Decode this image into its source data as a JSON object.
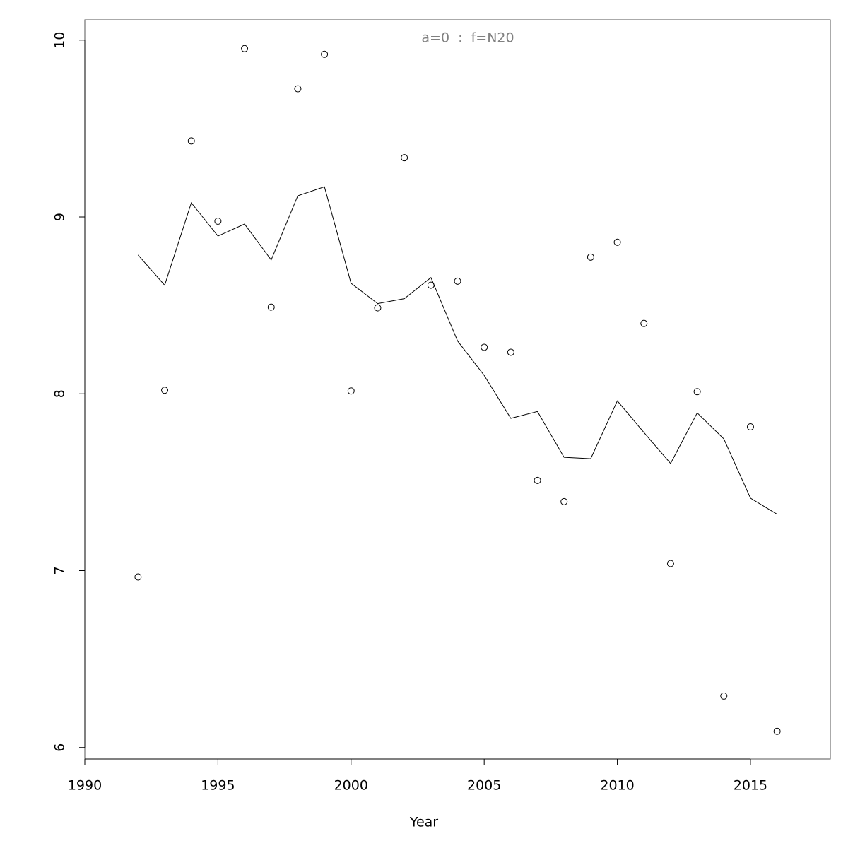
{
  "chart_data": {
    "type": "scatter",
    "title": "a=0  :  f=N20",
    "x_label": "Year",
    "x": [
      1992,
      1993,
      1994,
      1995,
      1996,
      1997,
      1998,
      1999,
      2000,
      2001,
      2002,
      2003,
      2004,
      2005,
      2006,
      2007,
      2008,
      2009,
      2010,
      2011,
      2012,
      2013,
      2014,
      2015,
      2016
    ],
    "series": [
      {
        "style": "points",
        "color": "#000000",
        "values": [
          6.964,
          8.02,
          9.43,
          8.976,
          9.952,
          8.49,
          9.725,
          9.92,
          8.016,
          8.486,
          9.335,
          8.614,
          8.637,
          8.263,
          8.235,
          7.51,
          7.39,
          8.773,
          8.857,
          8.398,
          7.04,
          8.012,
          6.291,
          7.813,
          6.092
        ]
      },
      {
        "style": "line",
        "color": "#000000",
        "values": [
          8.785,
          8.614,
          9.08,
          8.892,
          8.96,
          8.757,
          9.12,
          9.171,
          8.625,
          8.51,
          8.538,
          8.657,
          8.299,
          8.104,
          7.861,
          7.9,
          7.641,
          7.633,
          7.96,
          7.781,
          7.606,
          7.892,
          7.745,
          7.41,
          7.319
        ]
      }
    ],
    "xlim": [
      1990,
      2018
    ],
    "xticks": [
      1990,
      1995,
      2000,
      2005,
      2010,
      2015
    ],
    "ylim": [
      5.935,
      10.115
    ],
    "yticks": [
      6,
      7,
      8,
      9,
      10
    ]
  }
}
